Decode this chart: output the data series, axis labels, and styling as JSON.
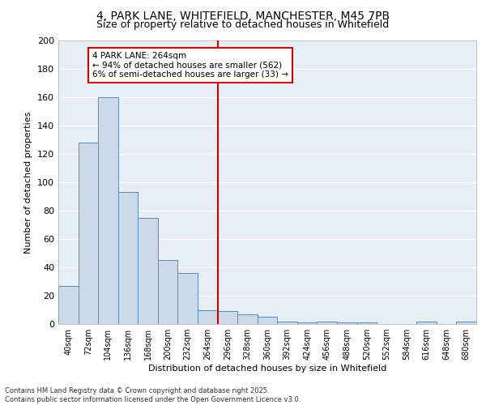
{
  "title_line1": "4, PARK LANE, WHITEFIELD, MANCHESTER, M45 7PB",
  "title_line2": "Size of property relative to detached houses in Whitefield",
  "xlabel": "Distribution of detached houses by size in Whitefield",
  "ylabel": "Number of detached properties",
  "categories": [
    "40sqm",
    "72sqm",
    "104sqm",
    "136sqm",
    "168sqm",
    "200sqm",
    "232sqm",
    "264sqm",
    "296sqm",
    "328sqm",
    "360sqm",
    "392sqm",
    "424sqm",
    "456sqm",
    "488sqm",
    "520sqm",
    "552sqm",
    "584sqm",
    "616sqm",
    "648sqm",
    "680sqm"
  ],
  "values": [
    27,
    128,
    160,
    93,
    75,
    45,
    36,
    10,
    9,
    7,
    5,
    2,
    1,
    2,
    1,
    1,
    0,
    0,
    2,
    0,
    2
  ],
  "bar_color": "#ccd9e8",
  "bar_edge_color": "#5b8db8",
  "vline_x_index": 7,
  "vline_color": "#cc0000",
  "annotation_title": "4 PARK LANE: 264sqm",
  "annotation_line1": "← 94% of detached houses are smaller (562)",
  "annotation_line2": "6% of semi-detached houses are larger (33) →",
  "annotation_box_color": "#ffffff",
  "annotation_box_edge_color": "#cc0000",
  "background_color": "#e8eef5",
  "grid_color": "#ffffff",
  "footer_line1": "Contains HM Land Registry data © Crown copyright and database right 2025.",
  "footer_line2": "Contains public sector information licensed under the Open Government Licence v3.0.",
  "ylim": [
    0,
    200
  ],
  "yticks": [
    0,
    20,
    40,
    60,
    80,
    100,
    120,
    140,
    160,
    180,
    200
  ],
  "title1_fontsize": 10,
  "title2_fontsize": 9,
  "ylabel_fontsize": 8,
  "xlabel_fontsize": 8,
  "tick_fontsize": 7,
  "footer_fontsize": 6,
  "ann_fontsize": 7.5
}
